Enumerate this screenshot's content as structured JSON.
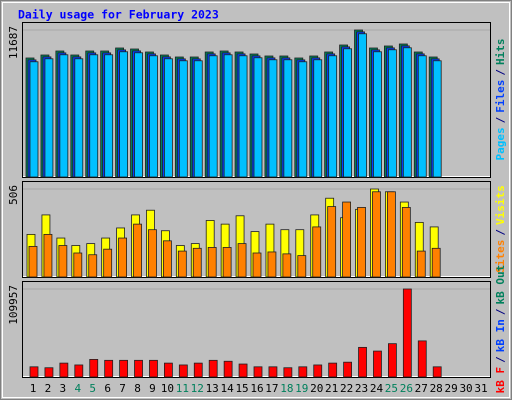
{
  "title": "Daily usage for February 2023",
  "legend_separator": "/",
  "categories": [
    "1",
    "2",
    "3",
    "4",
    "5",
    "6",
    "7",
    "8",
    "9",
    "10",
    "11",
    "12",
    "13",
    "14",
    "15",
    "16",
    "17",
    "18",
    "19",
    "20",
    "21",
    "22",
    "23",
    "24",
    "25",
    "26",
    "27",
    "28",
    "29",
    "30",
    "31"
  ],
  "category_colors": [
    "#000000",
    "#000000",
    "#000000",
    "#00805c",
    "#00805c",
    "#000000",
    "#000000",
    "#000000",
    "#000000",
    "#000000",
    "#00805c",
    "#00805c",
    "#000000",
    "#000000",
    "#000000",
    "#000000",
    "#000000",
    "#00805c",
    "#00805c",
    "#000000",
    "#000000",
    "#000000",
    "#000000",
    "#000000",
    "#00805c",
    "#00805c",
    "#000000",
    "#000000",
    "#000000",
    "#000000",
    "#000000"
  ],
  "chart_data": [
    {
      "type": "bar",
      "ylim": [
        0,
        11687
      ],
      "yticks": [
        11687
      ],
      "series": [
        {
          "name": "Hits",
          "color": "#00805c",
          "values": [
            9461,
            9699,
            10017,
            9699,
            10017,
            10017,
            10256,
            10176,
            9938,
            9699,
            9540,
            9540,
            9938,
            10017,
            9938,
            9779,
            9620,
            9620,
            9461,
            9620,
            9938,
            10494,
            11687,
            10256,
            10415,
            10574,
            9938,
            9540,
            null,
            null,
            null
          ]
        },
        {
          "name": "Files",
          "color": "#0040ff",
          "values": [
            9311,
            9549,
            9867,
            9549,
            9867,
            9867,
            10106,
            10026,
            9788,
            9549,
            9390,
            9390,
            9788,
            9867,
            9788,
            9629,
            9470,
            9470,
            9311,
            9470,
            9788,
            10344,
            11537,
            10106,
            10265,
            10424,
            9788,
            9390,
            null,
            null,
            null
          ]
        },
        {
          "name": "Pages",
          "color": "#00c0ff",
          "values": [
            9161,
            9399,
            9717,
            9399,
            9717,
            9717,
            9956,
            9876,
            9638,
            9399,
            9240,
            9240,
            9638,
            9717,
            9638,
            9479,
            9320,
            9320,
            9161,
            9320,
            9638,
            10194,
            11387,
            9956,
            10115,
            10274,
            9638,
            9240,
            null,
            null,
            null
          ]
        }
      ]
    },
    {
      "type": "bar",
      "ylim": [
        0,
        506
      ],
      "yticks": [
        506
      ],
      "series": [
        {
          "name": "Visits",
          "color": "#ffff00",
          "values": [
            245,
            357,
            224,
            181,
            192,
            224,
            282,
            357,
            384,
            266,
            181,
            192,
            325,
            304,
            352,
            261,
            304,
            272,
            272,
            357,
            453,
            341,
            389,
            506,
            490,
            431,
            314,
            288,
            null,
            null,
            null
          ]
        },
        {
          "name": "Sites",
          "color": "#ff8000",
          "values": [
            176,
            245,
            181,
            138,
            128,
            160,
            224,
            304,
            272,
            208,
            149,
            165,
            170,
            170,
            192,
            138,
            144,
            133,
            123,
            288,
            405,
            431,
            400,
            490,
            490,
            400,
            149,
            165,
            null,
            null,
            null
          ]
        }
      ]
    },
    {
      "type": "bar",
      "ylim": [
        0,
        109957
      ],
      "yticks": [
        109957
      ],
      "series": [
        {
          "name": "kB Out",
          "color": "#00805c",
          "values": [
            null,
            null,
            null,
            null,
            null,
            null,
            null,
            null,
            null,
            null,
            null,
            null,
            null,
            null,
            null,
            null,
            null,
            null,
            null,
            null,
            null,
            null,
            null,
            null,
            null,
            null,
            null,
            null,
            null,
            null,
            null
          ]
        },
        {
          "name": "kB In",
          "color": "#0040ff",
          "values": [
            null,
            null,
            null,
            null,
            null,
            null,
            null,
            null,
            null,
            null,
            null,
            null,
            null,
            null,
            null,
            null,
            null,
            null,
            null,
            null,
            null,
            null,
            null,
            null,
            null,
            null,
            null,
            null,
            null,
            null,
            null
          ]
        },
        {
          "name": "kB F",
          "color": "#ff0000",
          "values": [
            12728,
            11570,
            17355,
            15041,
            21983,
            20826,
            20826,
            20826,
            20826,
            17355,
            15041,
            17355,
            20826,
            19669,
            16198,
            12728,
            12728,
            11570,
            12728,
            15041,
            17355,
            18512,
            37024,
            32396,
            41652,
            109957,
            45123,
            12728,
            null,
            null,
            null
          ]
        }
      ]
    }
  ]
}
